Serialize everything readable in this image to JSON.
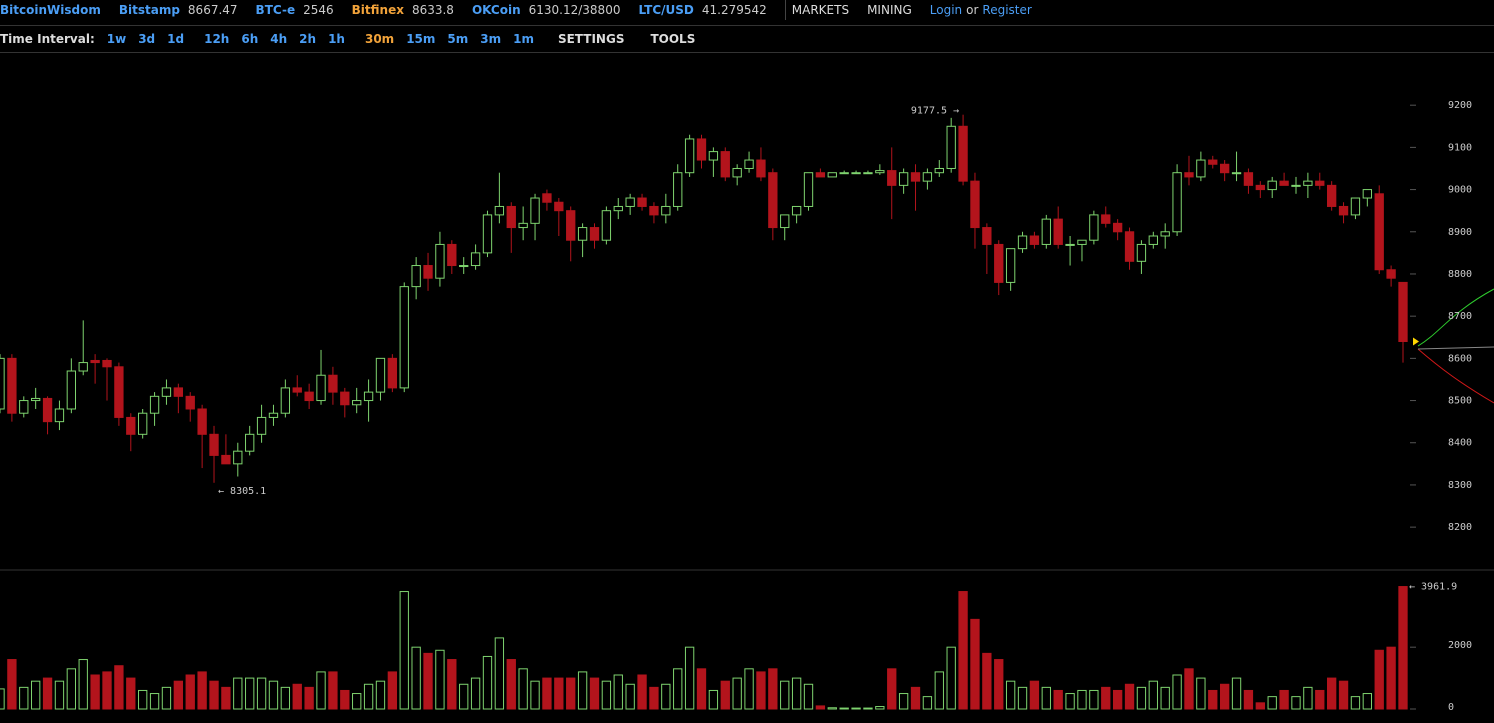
{
  "header": {
    "brand": "BitcoinWisdom",
    "tickers": [
      {
        "name": "Bitstamp",
        "price": "8667.47",
        "color": "#4b9ef5"
      },
      {
        "name": "BTC-e",
        "price": "2546",
        "color": "#4b9ef5"
      },
      {
        "name": "Bitfinex",
        "price": "8633.8",
        "color": "#f2a33a"
      },
      {
        "name": "OKCoin",
        "price": "6130.12/38800",
        "color": "#4b9ef5"
      },
      {
        "name": "LTC/USD",
        "price": "41.279542",
        "color": "#4b9ef5"
      }
    ],
    "menus": [
      "MARKETS",
      "MINING"
    ],
    "login": "Login",
    "or": "or",
    "register": "Register"
  },
  "toolbar": {
    "label": "Time Interval:",
    "intervals": [
      "1w",
      "3d",
      "1d",
      "12h",
      "6h",
      "4h",
      "2h",
      "1h",
      "30m",
      "15m",
      "5m",
      "3m",
      "1m"
    ],
    "active": "30m",
    "menus": [
      "SETTINGS",
      "TOOLS"
    ]
  },
  "chart_data": {
    "type": "candlestick",
    "up_color": "#7fd46f",
    "down_color": "#b3141c",
    "ylim": [
      8115,
      9300
    ],
    "yticks": [
      8200,
      8300,
      8400,
      8500,
      8600,
      8700,
      8800,
      8900,
      9000,
      9100,
      9200
    ],
    "volume_ylim": [
      0,
      4400
    ],
    "volume_ticks": [
      0,
      2000
    ],
    "high_label": "9177.5 →",
    "low_label": "← 8305.1",
    "volume_high_label": "← 3961.9",
    "candles": [
      [
        8480,
        8610,
        8470,
        8600,
        650
      ],
      [
        8600,
        8610,
        8450,
        8470,
        1600
      ],
      [
        8470,
        8510,
        8460,
        8500,
        700
      ],
      [
        8500,
        8530,
        8480,
        8505,
        900
      ],
      [
        8505,
        8510,
        8420,
        8450,
        1000
      ],
      [
        8450,
        8500,
        8430,
        8480,
        900
      ],
      [
        8480,
        8600,
        8470,
        8570,
        1300
      ],
      [
        8570,
        8690,
        8560,
        8590,
        1600
      ],
      [
        8595,
        8610,
        8540,
        8590,
        1100
      ],
      [
        8595,
        8600,
        8500,
        8580,
        1200
      ],
      [
        8580,
        8590,
        8440,
        8460,
        1400
      ],
      [
        8460,
        8470,
        8380,
        8420,
        1000
      ],
      [
        8420,
        8480,
        8410,
        8470,
        600
      ],
      [
        8470,
        8520,
        8440,
        8510,
        500
      ],
      [
        8510,
        8550,
        8490,
        8530,
        700
      ],
      [
        8530,
        8540,
        8470,
        8510,
        900
      ],
      [
        8510,
        8520,
        8450,
        8480,
        1100
      ],
      [
        8480,
        8490,
        8340,
        8420,
        1200
      ],
      [
        8420,
        8440,
        8305.1,
        8370,
        900
      ],
      [
        8370,
        8420,
        8350,
        8350,
        700
      ],
      [
        8350,
        8400,
        8320,
        8380,
        1000
      ],
      [
        8380,
        8440,
        8370,
        8420,
        1000
      ],
      [
        8420,
        8490,
        8400,
        8460,
        1000
      ],
      [
        8460,
        8490,
        8440,
        8470,
        900
      ],
      [
        8470,
        8550,
        8460,
        8530,
        700
      ],
      [
        8530,
        8560,
        8510,
        8520,
        800
      ],
      [
        8520,
        8540,
        8480,
        8500,
        700
      ],
      [
        8500,
        8620,
        8490,
        8560,
        1200
      ],
      [
        8560,
        8580,
        8490,
        8520,
        1200
      ],
      [
        8520,
        8530,
        8460,
        8490,
        600
      ],
      [
        8490,
        8530,
        8470,
        8500,
        500
      ],
      [
        8500,
        8550,
        8450,
        8520,
        800
      ],
      [
        8520,
        8600,
        8500,
        8600,
        900
      ],
      [
        8600,
        8610,
        8520,
        8530,
        1200
      ],
      [
        8530,
        8780,
        8520,
        8770,
        3800
      ],
      [
        8770,
        8840,
        8740,
        8820,
        2000
      ],
      [
        8820,
        8850,
        8760,
        8790,
        1800
      ],
      [
        8790,
        8900,
        8770,
        8870,
        1900
      ],
      [
        8870,
        8880,
        8800,
        8820,
        1600
      ],
      [
        8820,
        8840,
        8800,
        8820,
        800
      ],
      [
        8820,
        8870,
        8810,
        8850,
        1000
      ],
      [
        8850,
        8950,
        8840,
        8940,
        1700
      ],
      [
        8940,
        9040,
        8920,
        8960,
        2300
      ],
      [
        8960,
        8970,
        8850,
        8910,
        1600
      ],
      [
        8910,
        8960,
        8880,
        8920,
        1300
      ],
      [
        8920,
        8990,
        8880,
        8980,
        900
      ],
      [
        8990,
        9000,
        8950,
        8970,
        1000
      ],
      [
        8970,
        8980,
        8890,
        8950,
        1000
      ],
      [
        8950,
        8960,
        8830,
        8880,
        1000
      ],
      [
        8880,
        8920,
        8840,
        8910,
        1200
      ],
      [
        8910,
        8920,
        8860,
        8880,
        1000
      ],
      [
        8880,
        8960,
        8870,
        8950,
        900
      ],
      [
        8950,
        8980,
        8930,
        8960,
        1100
      ],
      [
        8960,
        8990,
        8940,
        8980,
        800
      ],
      [
        8980,
        8990,
        8950,
        8960,
        1100
      ],
      [
        8960,
        8970,
        8920,
        8940,
        700
      ],
      [
        8940,
        8990,
        8920,
        8960,
        800
      ],
      [
        8960,
        9060,
        8950,
        9040,
        1300
      ],
      [
        9040,
        9130,
        9030,
        9120,
        2000
      ],
      [
        9120,
        9130,
        9050,
        9070,
        1300
      ],
      [
        9070,
        9100,
        9030,
        9090,
        600
      ],
      [
        9090,
        9100,
        9020,
        9030,
        900
      ],
      [
        9030,
        9060,
        9010,
        9050,
        1000
      ],
      [
        9050,
        9090,
        9040,
        9070,
        1300
      ],
      [
        9070,
        9100,
        9020,
        9030,
        1200
      ],
      [
        9040,
        9050,
        8880,
        8910,
        1300
      ],
      [
        8910,
        8930,
        8880,
        8940,
        900
      ],
      [
        8940,
        8960,
        8920,
        8960,
        1000
      ],
      [
        8960,
        9040,
        8950,
        9040,
        800
      ],
      [
        9040,
        9050,
        9030,
        9030,
        100
      ],
      [
        9030,
        9040,
        9030,
        9040,
        40
      ],
      [
        9040,
        9045,
        9040,
        9040,
        30
      ],
      [
        9040,
        9045,
        9040,
        9040,
        30
      ],
      [
        9040,
        9045,
        9040,
        9040,
        30
      ],
      [
        9040,
        9060,
        9035,
        9045,
        80
      ],
      [
        9045,
        9100,
        8930,
        9010,
        1300
      ],
      [
        9010,
        9050,
        8990,
        9040,
        500
      ],
      [
        9040,
        9060,
        8950,
        9020,
        700
      ],
      [
        9020,
        9050,
        9000,
        9040,
        400
      ],
      [
        9040,
        9070,
        9030,
        9050,
        1200
      ],
      [
        9050,
        9170,
        9040,
        9150,
        2000
      ],
      [
        9150,
        9177.5,
        9010,
        9020,
        3800
      ],
      [
        9020,
        9040,
        8860,
        8910,
        2900
      ],
      [
        8910,
        8920,
        8800,
        8870,
        1800
      ],
      [
        8870,
        8880,
        8750,
        8780,
        1600
      ],
      [
        8780,
        8860,
        8760,
        8860,
        900
      ],
      [
        8860,
        8900,
        8850,
        8890,
        700
      ],
      [
        8890,
        8900,
        8860,
        8870,
        900
      ],
      [
        8870,
        8940,
        8860,
        8930,
        700
      ],
      [
        8930,
        8960,
        8860,
        8870,
        600
      ],
      [
        8870,
        8890,
        8820,
        8870,
        500
      ],
      [
        8870,
        8880,
        8830,
        8880,
        600
      ],
      [
        8880,
        8950,
        8870,
        8940,
        600
      ],
      [
        8940,
        8960,
        8910,
        8920,
        700
      ],
      [
        8920,
        8930,
        8880,
        8900,
        600
      ],
      [
        8900,
        8910,
        8810,
        8830,
        800
      ],
      [
        8830,
        8880,
        8800,
        8870,
        700
      ],
      [
        8870,
        8900,
        8860,
        8890,
        900
      ],
      [
        8890,
        8920,
        8860,
        8900,
        700
      ],
      [
        8900,
        9060,
        8890,
        9040,
        1100
      ],
      [
        9040,
        9080,
        9010,
        9030,
        1300
      ],
      [
        9030,
        9090,
        9020,
        9070,
        1000
      ],
      [
        9070,
        9080,
        9050,
        9060,
        600
      ],
      [
        9060,
        9070,
        9020,
        9040,
        800
      ],
      [
        9040,
        9090,
        9020,
        9040,
        1000
      ],
      [
        9040,
        9050,
        8990,
        9010,
        600
      ],
      [
        9010,
        9020,
        8980,
        9000,
        200
      ],
      [
        9000,
        9030,
        8980,
        9020,
        400
      ],
      [
        9020,
        9040,
        9010,
        9010,
        600
      ],
      [
        9010,
        9030,
        8990,
        9010,
        400
      ],
      [
        9010,
        9040,
        8980,
        9020,
        700
      ],
      [
        9020,
        9040,
        9000,
        9010,
        600
      ],
      [
        9010,
        9020,
        8950,
        8960,
        1000
      ],
      [
        8960,
        8970,
        8920,
        8940,
        900
      ],
      [
        8940,
        8980,
        8930,
        8980,
        400
      ],
      [
        8980,
        9000,
        8960,
        9000,
        500
      ],
      [
        8990,
        9010,
        8800,
        8810,
        1900
      ],
      [
        8810,
        8820,
        8770,
        8790,
        2000
      ],
      [
        8780,
        8780,
        8590,
        8640,
        3961.9
      ]
    ]
  }
}
